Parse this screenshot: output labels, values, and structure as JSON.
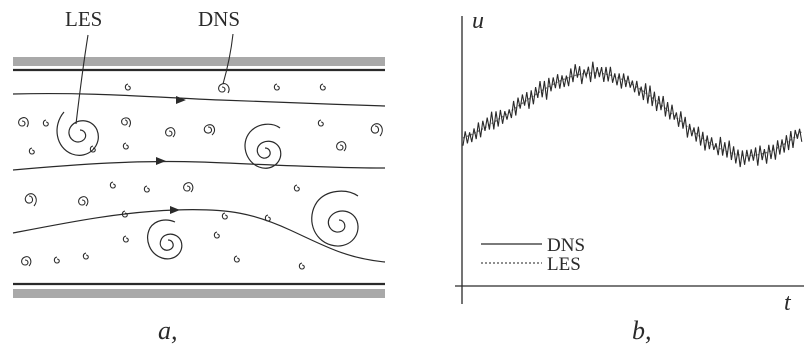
{
  "panel_a": {
    "label_les": "LES",
    "label_dns": "DNS",
    "caption": "a,"
  },
  "panel_b": {
    "axis_y": "u",
    "axis_x": "t",
    "legend": [
      {
        "label": "DNS",
        "style": "solid"
      },
      {
        "label": "LES",
        "style": "dotted"
      }
    ],
    "caption": "b,"
  },
  "colors": {
    "ink": "#2a2a2a",
    "wall": "#a9a9a9"
  }
}
